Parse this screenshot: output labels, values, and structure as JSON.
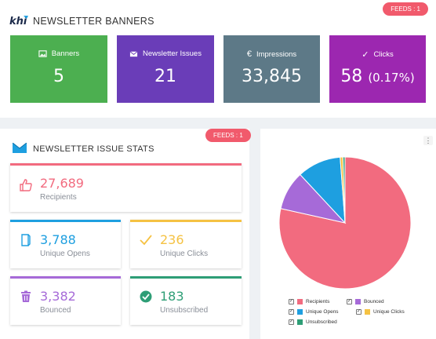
{
  "top": {
    "title": "NEWSLETTER BANNERS",
    "feeds_badge": "FEEDS : 1",
    "tiles": [
      {
        "label": "Banners",
        "value": "5",
        "icon": "image-icon",
        "color": "#4caf50"
      },
      {
        "label": "Newsletter Issues",
        "value": "21",
        "icon": "envelope-icon",
        "color": "#6a3db8"
      },
      {
        "label": "Impressions",
        "value": "33,845",
        "icon": "euro-icon",
        "color": "#5d7987"
      },
      {
        "label": "Clicks",
        "value": "58",
        "pct": "(0.17%)",
        "icon": "check-icon",
        "color": "#9c27b0"
      }
    ]
  },
  "stats": {
    "title": "NEWSLETTER ISSUE STATS",
    "feeds_badge": "FEEDS : 1",
    "cards": {
      "recipients": {
        "value": "27,689",
        "label": "Recipients",
        "color": "#f26b7f"
      },
      "opens": {
        "value": "3,788",
        "label": "Unique Opens",
        "color": "#1e9fe0"
      },
      "clicks": {
        "value": "236",
        "label": "Unique Clicks",
        "color": "#f5c243"
      },
      "bounced": {
        "value": "3,382",
        "label": "Bounced",
        "color": "#a66ad8"
      },
      "unsubscribed": {
        "value": "183",
        "label": "Unsubscribed",
        "color": "#2e9e76"
      }
    }
  },
  "chart": {
    "menu_icon": "⋮",
    "legend": [
      {
        "name": "Recipients",
        "color": "#f26b7f",
        "checked": true
      },
      {
        "name": "Bounced",
        "color": "#a66ad8",
        "checked": true
      },
      {
        "name": "Unique Opens",
        "color": "#1e9fe0",
        "checked": true
      },
      {
        "name": "Unique Clicks",
        "color": "#f5c243",
        "checked": true
      },
      {
        "name": "Unsubscribed",
        "color": "#2e9e76",
        "checked": true
      }
    ]
  },
  "chart_data": {
    "type": "pie",
    "categories": [
      "Recipients",
      "Bounced",
      "Unique Opens",
      "Unique Clicks",
      "Unsubscribed"
    ],
    "values": [
      27689,
      3382,
      3788,
      236,
      183
    ],
    "colors": [
      "#f26b7f",
      "#a66ad8",
      "#1e9fe0",
      "#f5c243",
      "#2e9e76"
    ],
    "legend_position": "bottom"
  }
}
